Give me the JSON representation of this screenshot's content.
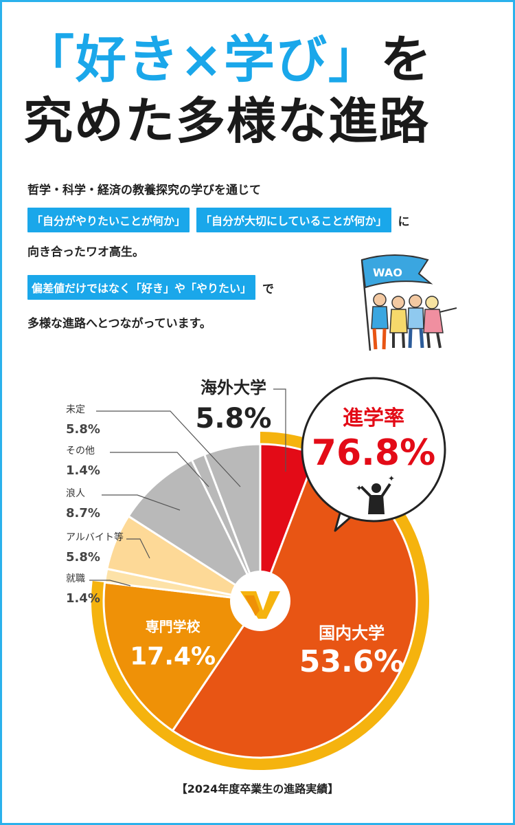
{
  "title": {
    "line1_accent_open": "「好き×学び」",
    "line1_plain": "を",
    "line2": "究めた多様な進路"
  },
  "description": {
    "line1": "哲学・科学・経済の教養探究の学びを通じて",
    "highlight1": "「自分がやりたいことが何か」",
    "highlight2": "「自分が大切にしていることが何か」",
    "line2_tail": "に",
    "line3": "向き合ったワオ高生。",
    "highlight3": "偏差値だけではなく「好き」や「やりたい」",
    "line4_tail": "で",
    "line5": "多様な進路へとつながっています。"
  },
  "illustration": {
    "flag_text": "WAO"
  },
  "callout": {
    "label": "進学率",
    "value": "76.8%"
  },
  "chart_data": {
    "type": "pie",
    "slices": [
      {
        "name": "海外大学",
        "value": 5.8,
        "label": "5.8%",
        "color": "#e30b17"
      },
      {
        "name": "国内大学",
        "value": 53.6,
        "label": "53.6%",
        "color": "#e85514"
      },
      {
        "name": "専門学校",
        "value": 17.4,
        "label": "17.4%",
        "color": "#ef9107"
      },
      {
        "name": "就職",
        "value": 1.4,
        "label": "1.4%",
        "color": "#fde2a8"
      },
      {
        "name": "アルバイト等",
        "value": 5.8,
        "label": "5.8%",
        "color": "#fdd997"
      },
      {
        "name": "浪人",
        "value": 8.7,
        "label": "8.7%",
        "color": "#b9b9b9"
      },
      {
        "name": "その他",
        "value": 1.4,
        "label": "1.4%",
        "color": "#b9b9b9"
      },
      {
        "name": "未定",
        "value": 5.8,
        "label": "5.8%",
        "color": "#b9b9b9"
      }
    ],
    "highlight_total": 76.8,
    "ring_color": "#f5b30e",
    "caption": "【2024年度卒業生の進路実績】"
  }
}
